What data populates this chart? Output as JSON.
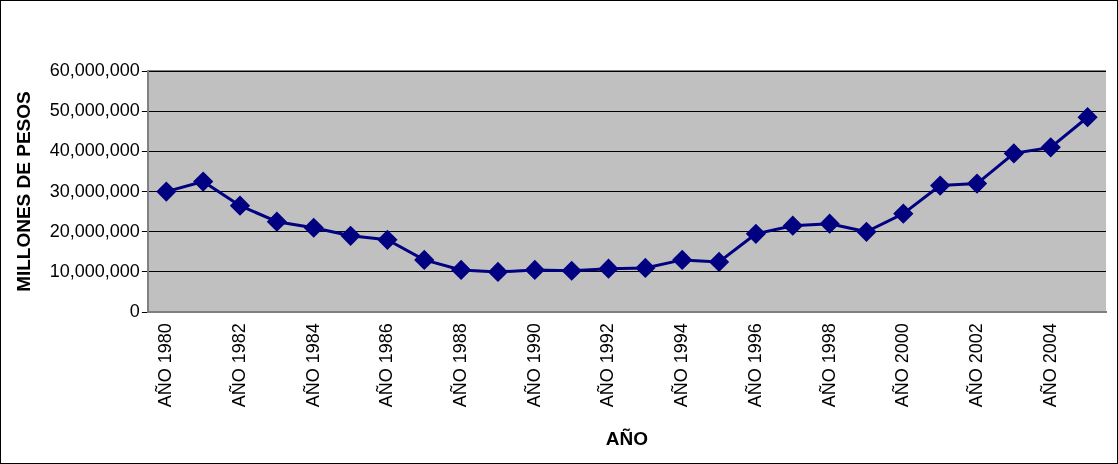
{
  "chart_data": {
    "type": "line",
    "xlabel": "AÑO",
    "ylabel": "MILLONES DE PESOS",
    "categories": [
      "AÑO 1980",
      null,
      "AÑO 1982",
      null,
      "AÑO 1984",
      null,
      "AÑO 1986",
      null,
      "AÑO 1988",
      null,
      "AÑO 1990",
      null,
      "AÑO 1992",
      null,
      "AÑO 1994",
      null,
      "AÑO 1996",
      null,
      "AÑO 1998",
      null,
      "AÑO 2000",
      null,
      "AÑO 2002",
      null,
      "AÑO 2004",
      null
    ],
    "series": [
      {
        "color": "#000080",
        "values": [
          30000000,
          32500000,
          26500000,
          22500000,
          21000000,
          19000000,
          18000000,
          13000000,
          10500000,
          10000000,
          10500000,
          10300000,
          10800000,
          11000000,
          13000000,
          12500000,
          19500000,
          21500000,
          22000000,
          20000000,
          24500000,
          31500000,
          32000000,
          39500000,
          41000000,
          48500000
        ]
      }
    ],
    "ylim": [
      0,
      60000000
    ],
    "yticks": [
      0,
      {
        "value": 10000000,
        "label": "10,000,000"
      },
      {
        "value": 20000000,
        "label": "20,000,000"
      },
      {
        "value": 30000000,
        "label": "30,000,000"
      },
      {
        "value": 40000000,
        "label": "40,000,000"
      },
      {
        "value": 50000000,
        "label": "50,000,000"
      },
      {
        "value": 60000000,
        "label": "60,000,000"
      }
    ],
    "grid": "y",
    "legend": false,
    "marker": "diamond",
    "line_style": "solid"
  }
}
